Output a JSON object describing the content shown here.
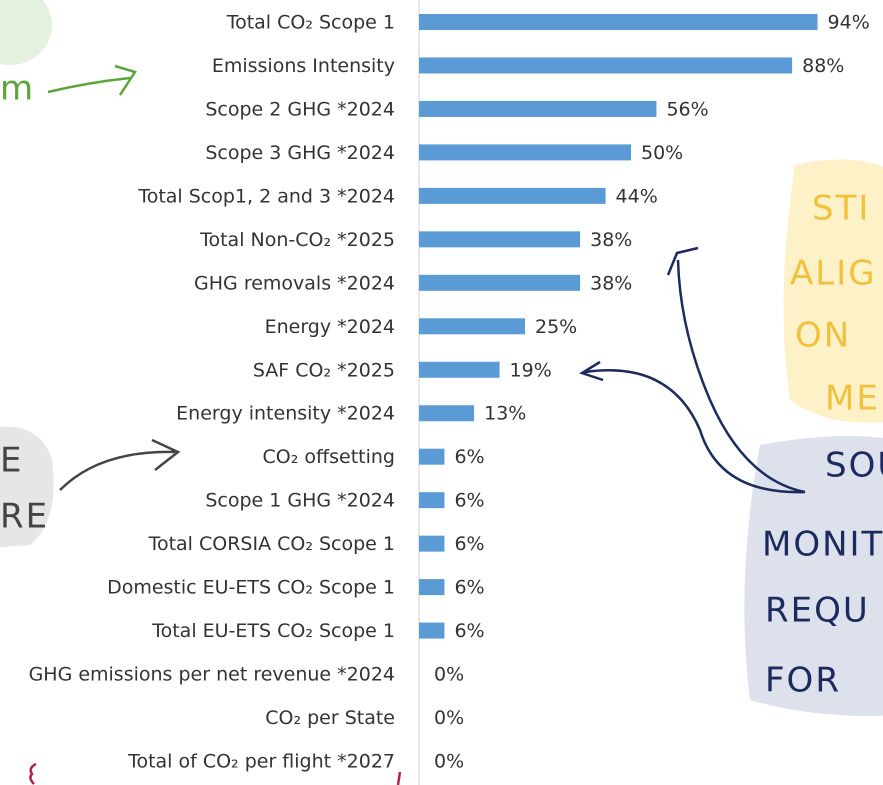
{
  "chart_data": {
    "type": "bar",
    "orientation": "horizontal",
    "categories": [
      "Total CO₂ Scope 1",
      "Emissions Intensity",
      "Scope 2 GHG *2024",
      "Scope 3 GHG *2024",
      "Total Scop1, 2 and 3 *2024",
      "Total Non-CO₂ *2025",
      "GHG removals *2024",
      "Energy *2024",
      "SAF CO₂ *2025",
      "Energy intensity *2024",
      "CO₂ offsetting",
      "Scope 1 GHG *2024",
      "Total CORSIA CO₂ Scope 1",
      "Domestic EU-ETS CO₂ Scope 1",
      "Total EU-ETS CO₂ Scope 1",
      "GHG emissions per net revenue *2024",
      "CO₂ per State",
      "Total of CO₂ per flight *2027"
    ],
    "values": [
      94,
      88,
      56,
      50,
      44,
      38,
      38,
      25,
      19,
      13,
      6,
      6,
      6,
      6,
      6,
      0,
      0,
      0
    ],
    "value_labels": [
      "94%",
      "88%",
      "56%",
      "50%",
      "44%",
      "38%",
      "38%",
      "25%",
      "19%",
      "13%",
      "6%",
      "6%",
      "6%",
      "6%",
      "6%",
      "0%",
      "0%",
      "0%"
    ],
    "color": "#5b9bd5",
    "xlim": [
      0,
      100
    ],
    "annotations": [
      "m",
      "STI",
      "ALIG",
      "ON",
      "ME",
      "E",
      "RE",
      "SOU",
      "MONIT",
      "REQU",
      "FOR"
    ]
  }
}
